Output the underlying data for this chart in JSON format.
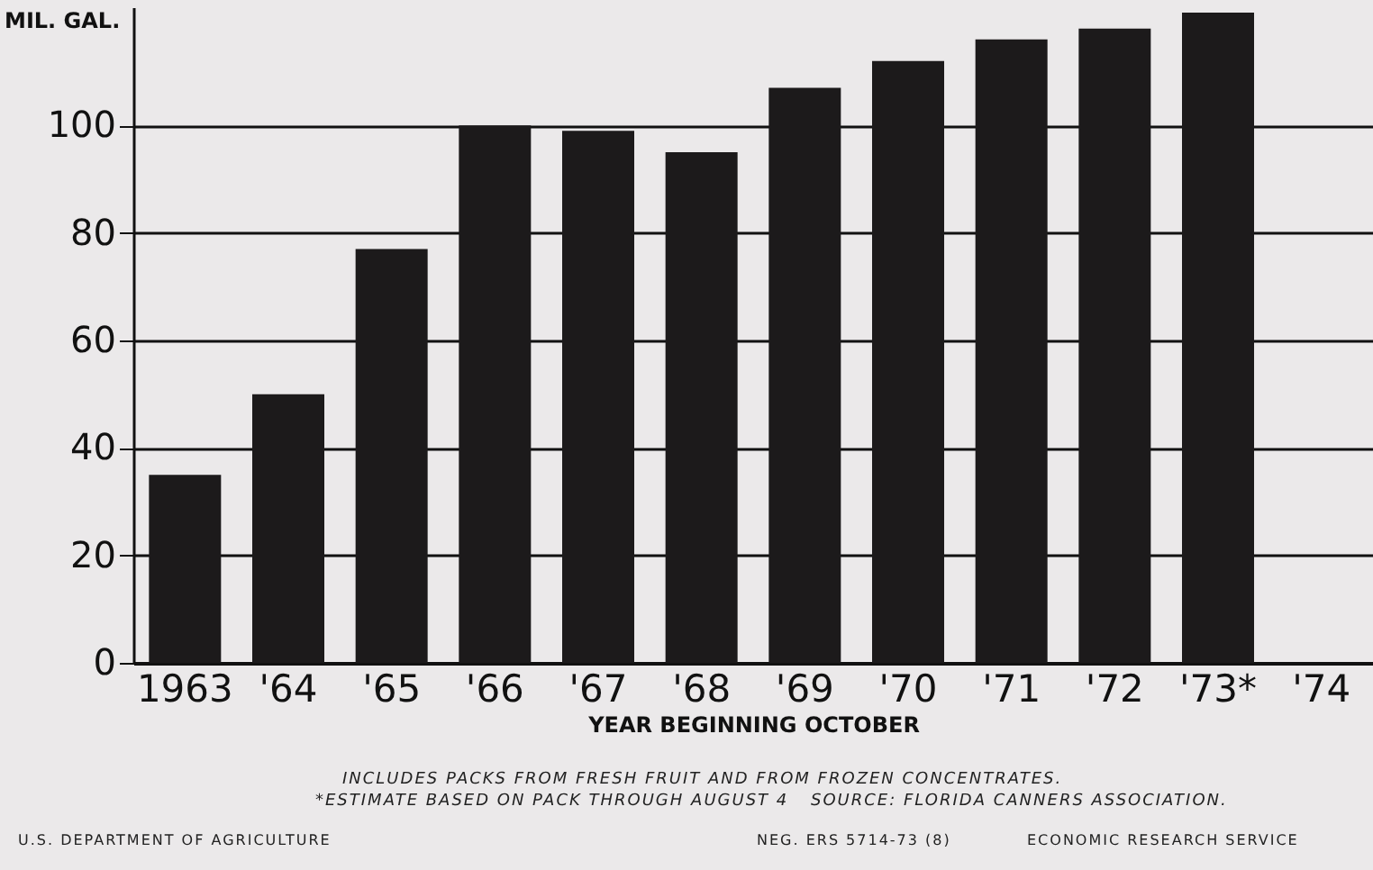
{
  "chart_data": {
    "type": "bar",
    "ylabel": "MIL. GAL.",
    "xlabel": "YEAR BEGINNING OCTOBER",
    "categories": [
      "1963",
      "'64",
      "'65",
      "'66",
      "'67",
      "'68",
      "'69",
      "'70",
      "'71",
      "'72",
      "'73*",
      "'74"
    ],
    "values": [
      35,
      50,
      77,
      100,
      99,
      95,
      107,
      112,
      116,
      118,
      121,
      null
    ],
    "color": "#1c1a1b",
    "ylim": [
      0,
      122
    ],
    "yticks": [
      0,
      20,
      40,
      60,
      80,
      100
    ],
    "grid": "y",
    "annotations": [
      "INCLUDES PACKS FROM FRESH FRUIT AND FROM FROZEN CONCENTRATES.",
      "*ESTIMATE BASED ON PACK THROUGH AUGUST 4",
      "SOURCE: FLORIDA CANNERS ASSOCIATION.",
      "U.S. DEPARTMENT OF AGRICULTURE",
      "NEG. ERS 5714-73 (8)",
      "ECONOMIC RESEARCH SERVICE"
    ]
  }
}
